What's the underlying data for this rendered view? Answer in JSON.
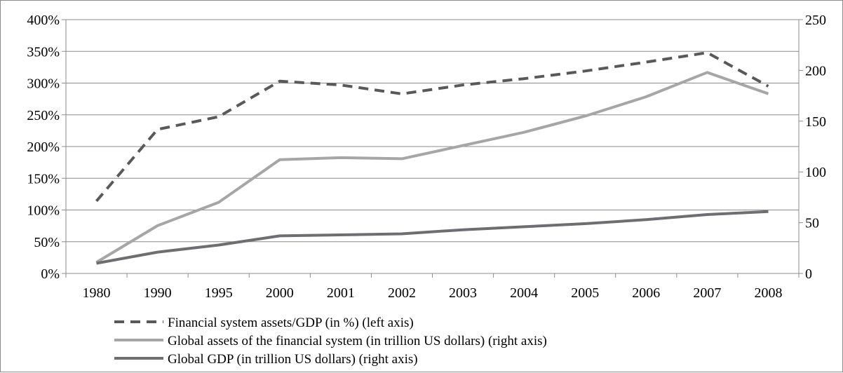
{
  "chart_data": {
    "type": "line",
    "categories": [
      "1980",
      "1990",
      "1995",
      "2000",
      "2001",
      "2002",
      "2003",
      "2004",
      "2005",
      "2006",
      "2007",
      "2008"
    ],
    "y_left": {
      "ylim": [
        0,
        4.0
      ],
      "ticks": [
        0,
        0.5,
        1.0,
        1.5,
        2.0,
        2.5,
        3.0,
        3.5,
        4.0
      ],
      "tick_labels": [
        "0%",
        "50%",
        "100%",
        "150%",
        "200%",
        "250%",
        "300%",
        "350%",
        "400%"
      ]
    },
    "y_right": {
      "ylim": [
        0,
        250
      ],
      "ticks": [
        0,
        50,
        100,
        150,
        200,
        250
      ],
      "tick_labels": [
        "0",
        "50",
        "100",
        "150",
        "200",
        "250"
      ]
    },
    "grid": true,
    "legend_position": "bottom-left",
    "series": [
      {
        "name": "Financial system assets/GDP (in %) (left axis)",
        "axis": "left",
        "style": "dashed",
        "color": "#595959",
        "values": [
          1.14,
          2.27,
          2.47,
          3.03,
          2.97,
          2.83,
          2.97,
          3.07,
          3.19,
          3.33,
          3.48,
          2.95
        ]
      },
      {
        "name": "Global assets of the financial system (in trillion US dollars) (right axis)",
        "axis": "right",
        "style": "solid",
        "color": "#a6a6a6",
        "values": [
          11,
          47,
          70,
          112,
          114,
          113,
          126,
          139,
          155,
          174,
          198,
          177
        ]
      },
      {
        "name": "Global GDP (in trillion US dollars) (right axis)",
        "axis": "right",
        "style": "solid",
        "color": "#6e6e72",
        "values": [
          10,
          21,
          28,
          37,
          38,
          39,
          43,
          46,
          49,
          53,
          58,
          61
        ]
      }
    ]
  }
}
